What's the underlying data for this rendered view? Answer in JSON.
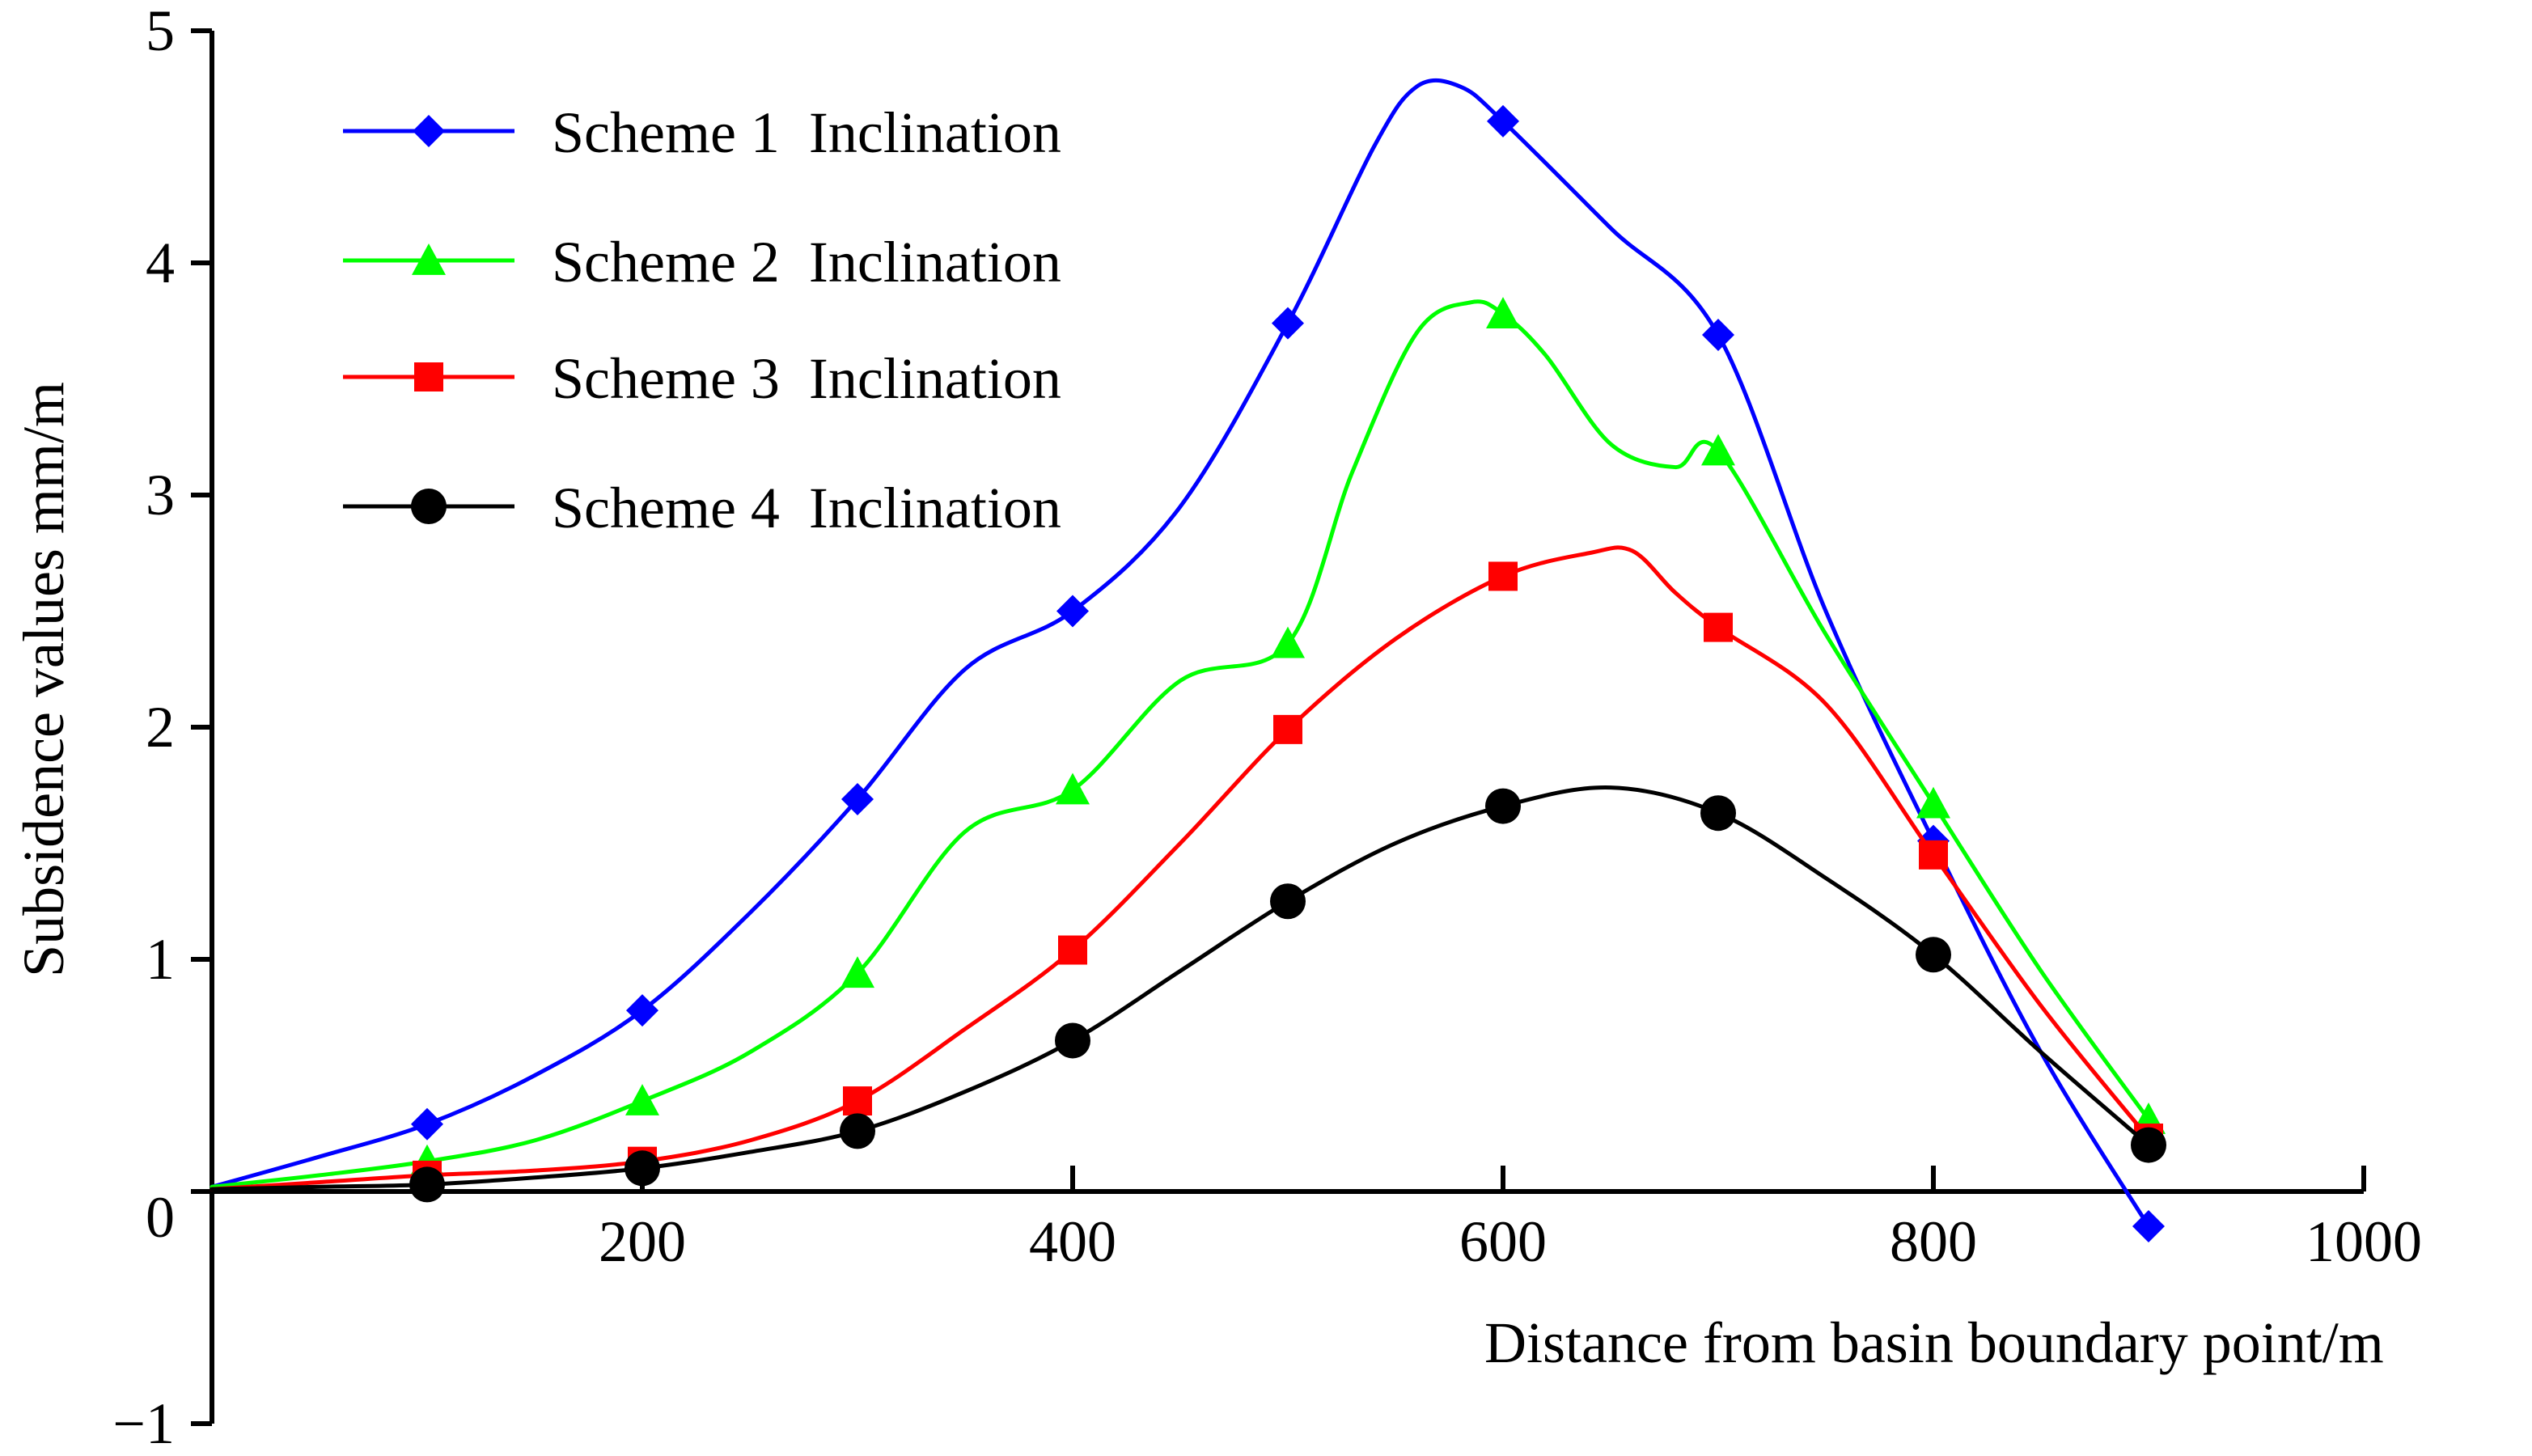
{
  "chart_data": {
    "type": "line",
    "xlabel": "Distance from basin boundary point/m",
    "ylabel": "Subsidence values mm/m",
    "xlim": [
      0,
      1000
    ],
    "ylim": [
      -1,
      5
    ],
    "x_ticks": [
      200,
      400,
      600,
      800,
      1000
    ],
    "y_ticks": [
      -1,
      0,
      1,
      2,
      3,
      4,
      5
    ],
    "x_tick_labels": [
      "200",
      "400",
      "600",
      "800",
      "1000"
    ],
    "y_tick_labels": [
      "−1",
      "0",
      "1",
      "2",
      "3",
      "4",
      "5"
    ],
    "grid": false,
    "legend_position": "top-left",
    "series": [
      {
        "name": "Scheme 1  Inclination",
        "color": "#0000ff",
        "marker": "diamond",
        "x": [
          0,
          100,
          200,
          300,
          400,
          500,
          600,
          700,
          800,
          900
        ],
        "y": [
          0.02,
          0.29,
          0.78,
          1.69,
          2.5,
          3.74,
          4.61,
          3.69,
          1.51,
          -0.15
        ],
        "curve": [
          [
            0,
            0.02
          ],
          [
            50,
            0.15
          ],
          [
            100,
            0.29
          ],
          [
            150,
            0.5
          ],
          [
            200,
            0.78
          ],
          [
            250,
            1.2
          ],
          [
            300,
            1.69
          ],
          [
            350,
            2.25
          ],
          [
            400,
            2.5
          ],
          [
            450,
            2.95
          ],
          [
            500,
            3.74
          ],
          [
            540,
            4.5
          ],
          [
            560,
            4.76
          ],
          [
            580,
            4.76
          ],
          [
            600,
            4.61
          ],
          [
            650,
            4.15
          ],
          [
            700,
            3.69
          ],
          [
            750,
            2.5
          ],
          [
            800,
            1.51
          ],
          [
            850,
            0.6
          ],
          [
            900,
            -0.15
          ]
        ]
      },
      {
        "name": "Scheme 2  Inclination",
        "color": "#00ff00",
        "marker": "triangle",
        "x": [
          0,
          100,
          200,
          300,
          400,
          500,
          600,
          700,
          800,
          900
        ],
        "y": [
          0.02,
          0.13,
          0.39,
          0.94,
          1.73,
          2.36,
          3.78,
          3.19,
          1.67,
          0.31
        ],
        "curve": [
          [
            0,
            0.02
          ],
          [
            50,
            0.07
          ],
          [
            100,
            0.13
          ],
          [
            150,
            0.22
          ],
          [
            200,
            0.39
          ],
          [
            250,
            0.6
          ],
          [
            300,
            0.94
          ],
          [
            350,
            1.55
          ],
          [
            400,
            1.73
          ],
          [
            450,
            2.2
          ],
          [
            500,
            2.36
          ],
          [
            530,
            3.1
          ],
          [
            560,
            3.7
          ],
          [
            585,
            3.83
          ],
          [
            600,
            3.78
          ],
          [
            620,
            3.6
          ],
          [
            650,
            3.22
          ],
          [
            680,
            3.12
          ],
          [
            700,
            3.19
          ],
          [
            750,
            2.4
          ],
          [
            800,
            1.67
          ],
          [
            850,
            0.95
          ],
          [
            900,
            0.31
          ]
        ]
      },
      {
        "name": "Scheme 3  Inclination",
        "color": "#ff0000",
        "marker": "square",
        "x": [
          0,
          100,
          200,
          300,
          400,
          500,
          600,
          700,
          800,
          900
        ],
        "y": [
          0.01,
          0.07,
          0.13,
          0.39,
          1.04,
          1.99,
          2.65,
          2.43,
          1.45,
          0.23
        ],
        "curve": [
          [
            0,
            0.01
          ],
          [
            50,
            0.04
          ],
          [
            100,
            0.07
          ],
          [
            150,
            0.09
          ],
          [
            200,
            0.13
          ],
          [
            250,
            0.22
          ],
          [
            300,
            0.39
          ],
          [
            350,
            0.7
          ],
          [
            400,
            1.04
          ],
          [
            450,
            1.5
          ],
          [
            500,
            1.99
          ],
          [
            550,
            2.38
          ],
          [
            600,
            2.65
          ],
          [
            640,
            2.75
          ],
          [
            660,
            2.76
          ],
          [
            680,
            2.58
          ],
          [
            700,
            2.43
          ],
          [
            750,
            2.1
          ],
          [
            800,
            1.45
          ],
          [
            850,
            0.8
          ],
          [
            900,
            0.23
          ]
        ]
      },
      {
        "name": "Scheme 4  Inclination",
        "color": "#000000",
        "marker": "circle",
        "x": [
          0,
          100,
          200,
          300,
          400,
          500,
          600,
          700,
          800,
          900
        ],
        "y": [
          0.01,
          0.03,
          0.1,
          0.26,
          0.65,
          1.25,
          1.66,
          1.63,
          1.02,
          0.2
        ],
        "curve": [
          [
            0,
            0.01
          ],
          [
            50,
            0.02
          ],
          [
            100,
            0.03
          ],
          [
            150,
            0.06
          ],
          [
            200,
            0.1
          ],
          [
            250,
            0.17
          ],
          [
            300,
            0.26
          ],
          [
            350,
            0.43
          ],
          [
            400,
            0.65
          ],
          [
            450,
            0.95
          ],
          [
            500,
            1.25
          ],
          [
            550,
            1.5
          ],
          [
            600,
            1.66
          ],
          [
            650,
            1.74
          ],
          [
            700,
            1.63
          ],
          [
            750,
            1.35
          ],
          [
            800,
            1.02
          ],
          [
            850,
            0.6
          ],
          [
            900,
            0.2
          ]
        ]
      }
    ]
  }
}
